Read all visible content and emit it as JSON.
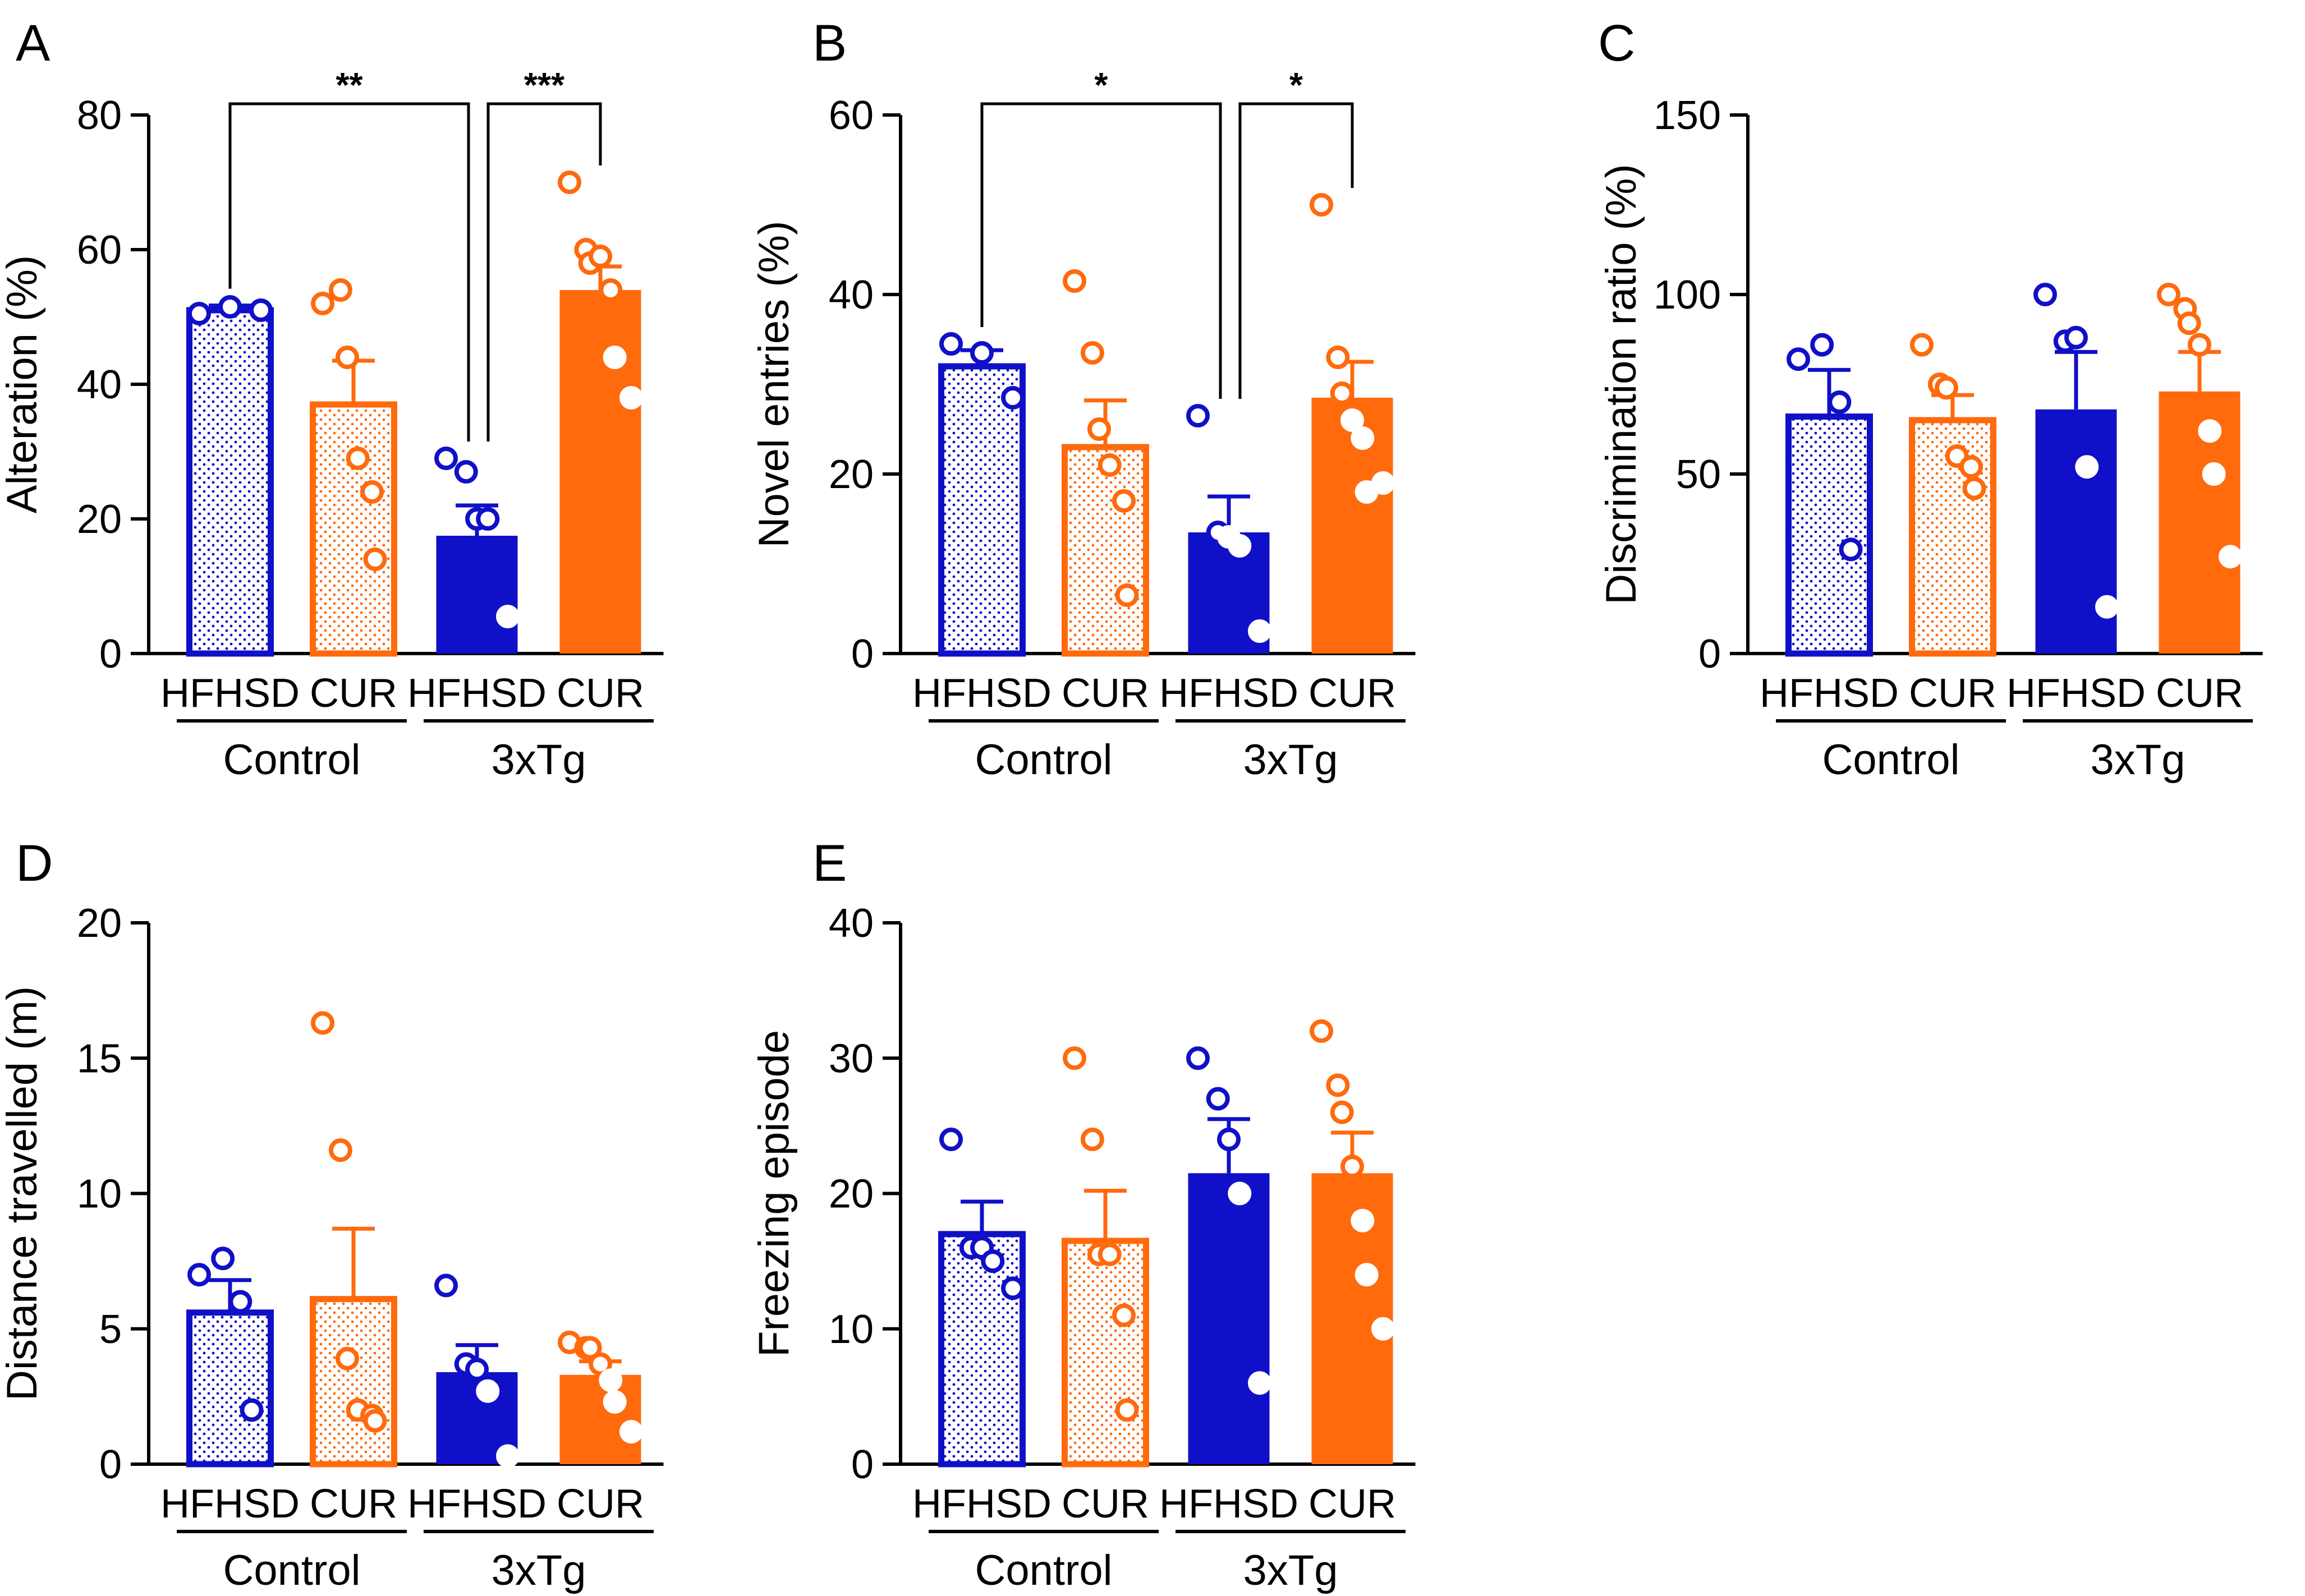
{
  "colors": {
    "hfhsd": "#1010c8",
    "cur": "#ff6a0d",
    "axis": "#000000"
  },
  "pattern_names": [
    "dotted-fill-blue",
    "dotted-fill-orange"
  ],
  "chart_data": [
    {
      "panel": "A",
      "type": "bar",
      "ylabel": "Alteration (%)",
      "ylim": [
        0,
        80
      ],
      "yticks": [
        0,
        20,
        40,
        60,
        80
      ],
      "categories": [
        "HFHSD",
        "CUR",
        "HFHSD",
        "CUR"
      ],
      "groups": [
        "Control",
        "3xTg"
      ],
      "series": [
        {
          "name": "Control HFHSD",
          "mean": 51,
          "sem": 0.7,
          "fill": "dotted",
          "color": "hfhsd",
          "points": [
            50.5,
            51.5,
            51
          ]
        },
        {
          "name": "Control CUR",
          "mean": 37,
          "sem": 6.5,
          "fill": "dotted",
          "color": "cur",
          "points": [
            52,
            54,
            44,
            29,
            24,
            14
          ]
        },
        {
          "name": "3xTg HFHSD",
          "mean": 17.5,
          "sem": 4.5,
          "fill": "solid",
          "color": "hfhsd",
          "points": [
            29,
            27,
            20,
            20,
            5.5
          ]
        },
        {
          "name": "3xTg CUR",
          "mean": 54,
          "sem": 3.5,
          "fill": "solid",
          "color": "cur",
          "points": [
            70,
            60,
            58,
            59,
            54,
            44,
            38
          ]
        }
      ],
      "significance": [
        {
          "from": 0,
          "to": 2,
          "label": "**"
        },
        {
          "from": 2,
          "to": 3,
          "label": "***"
        }
      ]
    },
    {
      "panel": "B",
      "type": "bar",
      "ylabel": "Novel entries (%)",
      "ylim": [
        0,
        60
      ],
      "yticks": [
        0,
        20,
        40,
        60
      ],
      "categories": [
        "HFHSD",
        "CUR",
        "HFHSD",
        "CUR"
      ],
      "groups": [
        "Control",
        "3xTg"
      ],
      "series": [
        {
          "name": "Control HFHSD",
          "mean": 32,
          "sem": 1.8,
          "fill": "dotted",
          "color": "hfhsd",
          "points": [
            34.5,
            33.5,
            28.5
          ]
        },
        {
          "name": "Control CUR",
          "mean": 23,
          "sem": 5.2,
          "fill": "dotted",
          "color": "cur",
          "points": [
            41.5,
            33.5,
            25,
            21,
            17,
            6.5
          ]
        },
        {
          "name": "3xTg HFHSD",
          "mean": 13.5,
          "sem": 4,
          "fill": "solid",
          "color": "hfhsd",
          "points": [
            26.5,
            13.5,
            13,
            12,
            2.5
          ]
        },
        {
          "name": "3xTg CUR",
          "mean": 28.5,
          "sem": 4,
          "fill": "solid",
          "color": "cur",
          "points": [
            50,
            33,
            29,
            26,
            24,
            18,
            19
          ]
        }
      ],
      "significance": [
        {
          "from": 0,
          "to": 2,
          "label": "*"
        },
        {
          "from": 2,
          "to": 3,
          "label": "*"
        }
      ]
    },
    {
      "panel": "C",
      "type": "bar",
      "ylabel": "Discrimination ratio (%)",
      "ylim": [
        0,
        150
      ],
      "yticks": [
        0,
        50,
        100,
        150
      ],
      "categories": [
        "HFHSD",
        "CUR",
        "HFHSD",
        "CUR"
      ],
      "groups": [
        "Control",
        "3xTg"
      ],
      "series": [
        {
          "name": "Control HFHSD",
          "mean": 66,
          "sem": 13,
          "fill": "dotted",
          "color": "hfhsd",
          "points": [
            82,
            86,
            70,
            29
          ]
        },
        {
          "name": "Control CUR",
          "mean": 65,
          "sem": 7,
          "fill": "dotted",
          "color": "cur",
          "points": [
            86,
            75,
            74,
            55,
            52,
            46
          ]
        },
        {
          "name": "3xTg HFHSD",
          "mean": 68,
          "sem": 16,
          "fill": "solid",
          "color": "hfhsd",
          "points": [
            100,
            87,
            88,
            52,
            13
          ]
        },
        {
          "name": "3xTg CUR",
          "mean": 73,
          "sem": 11,
          "fill": "solid",
          "color": "cur",
          "points": [
            100,
            96,
            92,
            86,
            62,
            50,
            27
          ]
        }
      ],
      "significance": []
    },
    {
      "panel": "D",
      "type": "bar",
      "ylabel": "Distance travelled (m)",
      "ylim": [
        0,
        20
      ],
      "yticks": [
        0,
        5,
        10,
        15,
        20
      ],
      "categories": [
        "HFHSD",
        "CUR",
        "HFHSD",
        "CUR"
      ],
      "groups": [
        "Control",
        "3xTg"
      ],
      "series": [
        {
          "name": "Control HFHSD",
          "mean": 5.6,
          "sem": 1.2,
          "fill": "dotted",
          "color": "hfhsd",
          "points": [
            7,
            7.6,
            6,
            2
          ]
        },
        {
          "name": "Control CUR",
          "mean": 6.1,
          "sem": 2.6,
          "fill": "dotted",
          "color": "cur",
          "points": [
            16.3,
            11.6,
            3.9,
            2,
            1.8,
            1.6
          ]
        },
        {
          "name": "3xTg HFHSD",
          "mean": 3.4,
          "sem": 1,
          "fill": "solid",
          "color": "hfhsd",
          "points": [
            6.6,
            3.7,
            3.5,
            2.7,
            0.3
          ]
        },
        {
          "name": "3xTg CUR",
          "mean": 3.3,
          "sem": 0.5,
          "fill": "solid",
          "color": "cur",
          "points": [
            4.5,
            4.3,
            4.3,
            3.7,
            3.1,
            2.3,
            1.2
          ]
        }
      ],
      "significance": []
    },
    {
      "panel": "E",
      "type": "bar",
      "ylabel": "Freezing episode",
      "ylim": [
        0,
        40
      ],
      "yticks": [
        0,
        10,
        20,
        30,
        40
      ],
      "categories": [
        "HFHSD",
        "CUR",
        "HFHSD",
        "CUR"
      ],
      "groups": [
        "Control",
        "3xTg"
      ],
      "series": [
        {
          "name": "Control HFHSD",
          "mean": 17,
          "sem": 2.4,
          "fill": "dotted",
          "color": "hfhsd",
          "points": [
            24,
            16,
            16,
            15,
            13
          ]
        },
        {
          "name": "Control CUR",
          "mean": 16.5,
          "sem": 3.7,
          "fill": "dotted",
          "color": "cur",
          "points": [
            30,
            24,
            15.5,
            15.5,
            11,
            4
          ]
        },
        {
          "name": "3xTg HFHSD",
          "mean": 21.5,
          "sem": 4,
          "fill": "solid",
          "color": "hfhsd",
          "points": [
            30,
            27,
            24,
            20,
            6
          ]
        },
        {
          "name": "3xTg CUR",
          "mean": 21.5,
          "sem": 3,
          "fill": "solid",
          "color": "cur",
          "points": [
            32,
            28,
            26,
            22,
            18,
            14,
            10
          ]
        }
      ],
      "significance": []
    }
  ]
}
